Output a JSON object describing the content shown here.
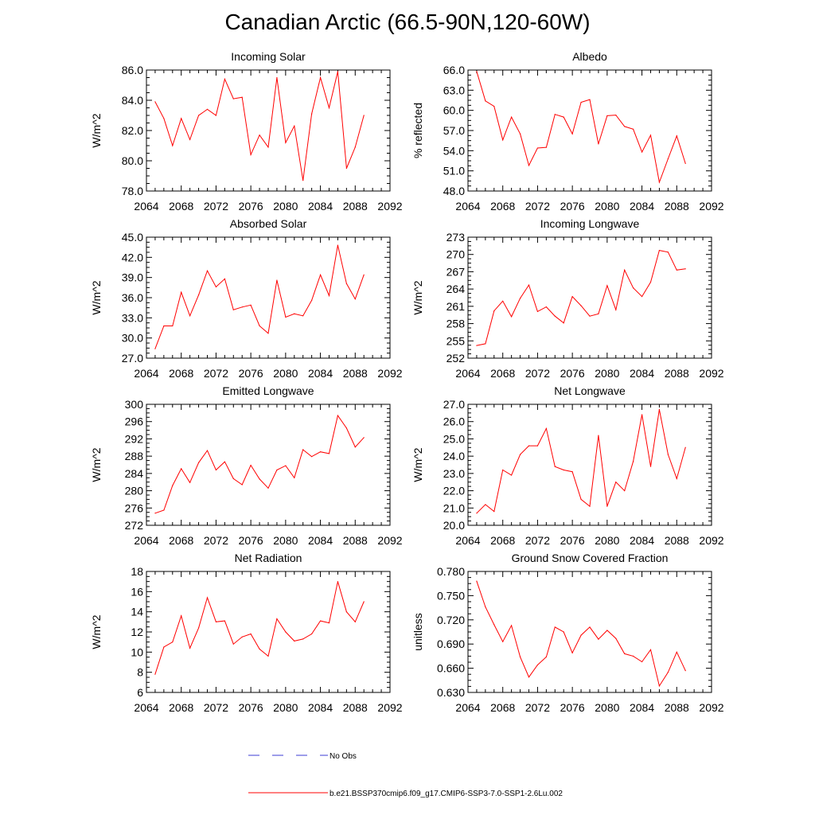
{
  "figure": {
    "title": "Canadian Arctic (66.5-90N,120-60W)",
    "legend": {
      "obs_label": "No Obs",
      "obs_color": "#3b3bd6",
      "model_label": "b.e21.BSSP370cmip6.f09_g17.CMIP6-SSP3-7.0-SSP1-2.6Lu.002",
      "model_color": "#ff0000"
    }
  },
  "chart_data": [
    {
      "type": "line",
      "title": "Incoming Solar",
      "ylabel": "W/m^2",
      "xlim": [
        2064,
        2092
      ],
      "xticks": [
        "2064",
        "2068",
        "2072",
        "2076",
        "2080",
        "2084",
        "2088",
        "2092"
      ],
      "ylim": [
        78.0,
        86.0
      ],
      "yticks": [
        "78.0",
        "80.0",
        "82.0",
        "84.0",
        "86.0"
      ],
      "x": [
        2065,
        2066,
        2067,
        2068,
        2069,
        2070,
        2071,
        2072,
        2073,
        2074,
        2075,
        2076,
        2077,
        2078,
        2079,
        2080,
        2081,
        2082,
        2083,
        2084,
        2085,
        2086,
        2087,
        2088,
        2089
      ],
      "series": [
        {
          "values": [
            83.9,
            82.8,
            81.0,
            82.8,
            81.4,
            83.0,
            83.4,
            83.0,
            85.4,
            84.1,
            84.2,
            80.4,
            81.7,
            80.9,
            85.5,
            81.2,
            82.3,
            78.7,
            83.1,
            85.5,
            83.5,
            85.9,
            79.5,
            80.9,
            83.0
          ]
        }
      ]
    },
    {
      "type": "line",
      "title": "Albedo",
      "ylabel": "% reflected",
      "xlim": [
        2064,
        2092
      ],
      "xticks": [
        "2064",
        "2068",
        "2072",
        "2076",
        "2080",
        "2084",
        "2088",
        "2092"
      ],
      "ylim": [
        48.0,
        66.0
      ],
      "yticks": [
        "48.0",
        "51.0",
        "54.0",
        "57.0",
        "60.0",
        "63.0",
        "66.0"
      ],
      "x": [
        2065,
        2066,
        2067,
        2068,
        2069,
        2070,
        2071,
        2072,
        2073,
        2074,
        2075,
        2076,
        2077,
        2078,
        2079,
        2080,
        2081,
        2082,
        2083,
        2084,
        2085,
        2086,
        2087,
        2088,
        2089
      ],
      "series": [
        {
          "values": [
            65.8,
            61.4,
            60.6,
            55.6,
            59.0,
            56.5,
            51.8,
            54.4,
            54.5,
            59.4,
            59.0,
            56.5,
            61.2,
            61.6,
            55.0,
            59.2,
            59.3,
            57.6,
            57.2,
            53.8,
            56.3,
            49.3,
            52.8,
            56.2,
            52.1
          ]
        }
      ]
    },
    {
      "type": "line",
      "title": "Absorbed Solar",
      "ylabel": "W/m^2",
      "xlim": [
        2064,
        2092
      ],
      "xticks": [
        "2064",
        "2068",
        "2072",
        "2076",
        "2080",
        "2084",
        "2088",
        "2092"
      ],
      "ylim": [
        27.0,
        45.0
      ],
      "yticks": [
        "27.0",
        "30.0",
        "33.0",
        "36.0",
        "39.0",
        "42.0",
        "45.0"
      ],
      "x": [
        2065,
        2066,
        2067,
        2068,
        2069,
        2070,
        2071,
        2072,
        2073,
        2074,
        2075,
        2076,
        2077,
        2078,
        2079,
        2080,
        2081,
        2082,
        2083,
        2084,
        2085,
        2086,
        2087,
        2088,
        2089
      ],
      "series": [
        {
          "values": [
            28.4,
            31.8,
            31.8,
            36.8,
            33.3,
            36.4,
            40.0,
            37.6,
            38.8,
            34.2,
            34.6,
            34.9,
            31.8,
            30.7,
            38.6,
            33.1,
            33.6,
            33.3,
            35.6,
            39.4,
            36.3,
            43.8,
            38.1,
            35.8,
            39.4
          ]
        }
      ]
    },
    {
      "type": "line",
      "title": "Incoming Longwave",
      "ylabel": "W/m^2",
      "xlim": [
        2064,
        2092
      ],
      "xticks": [
        "2064",
        "2068",
        "2072",
        "2076",
        "2080",
        "2084",
        "2088",
        "2092"
      ],
      "ylim": [
        252,
        273
      ],
      "yticks": [
        "252",
        "255",
        "258",
        "261",
        "264",
        "267",
        "270",
        "273"
      ],
      "x": [
        2065,
        2066,
        2067,
        2068,
        2069,
        2070,
        2071,
        2072,
        2073,
        2074,
        2075,
        2076,
        2077,
        2078,
        2079,
        2080,
        2081,
        2082,
        2083,
        2084,
        2085,
        2086,
        2087,
        2088,
        2089
      ],
      "series": [
        {
          "values": [
            254.2,
            254.5,
            260.2,
            261.9,
            259.2,
            262.4,
            264.7,
            260.1,
            260.9,
            259.3,
            258.1,
            262.7,
            261.1,
            259.3,
            259.7,
            264.6,
            260.4,
            267.3,
            264.2,
            262.7,
            265.2,
            270.7,
            270.4,
            267.3,
            267.5
          ]
        }
      ]
    },
    {
      "type": "line",
      "title": "Emitted Longwave",
      "ylabel": "W/m^2",
      "xlim": [
        2064,
        2092
      ],
      "xticks": [
        "2064",
        "2068",
        "2072",
        "2076",
        "2080",
        "2084",
        "2088",
        "2092"
      ],
      "ylim": [
        272,
        300
      ],
      "yticks": [
        "272",
        "276",
        "280",
        "284",
        "288",
        "292",
        "296",
        "300"
      ],
      "x": [
        2065,
        2066,
        2067,
        2068,
        2069,
        2070,
        2071,
        2072,
        2073,
        2074,
        2075,
        2076,
        2077,
        2078,
        2079,
        2080,
        2081,
        2082,
        2083,
        2084,
        2085,
        2086,
        2087,
        2088,
        2089
      ],
      "series": [
        {
          "values": [
            274.8,
            275.5,
            281.2,
            285.1,
            281.9,
            286.5,
            289.3,
            284.8,
            286.7,
            282.8,
            281.4,
            285.9,
            282.7,
            280.6,
            284.8,
            285.8,
            283.0,
            289.5,
            287.9,
            289.0,
            288.6,
            297.4,
            294.5,
            290.1,
            292.3
          ]
        }
      ]
    },
    {
      "type": "line",
      "title": "Net Longwave",
      "ylabel": "W/m^2",
      "xlim": [
        2064,
        2092
      ],
      "xticks": [
        "2064",
        "2068",
        "2072",
        "2076",
        "2080",
        "2084",
        "2088",
        "2092"
      ],
      "ylim": [
        20.0,
        27.0
      ],
      "yticks": [
        "20.0",
        "21.0",
        "22.0",
        "23.0",
        "24.0",
        "25.0",
        "26.0",
        "27.0"
      ],
      "x": [
        2065,
        2066,
        2067,
        2068,
        2069,
        2070,
        2071,
        2072,
        2073,
        2074,
        2075,
        2076,
        2077,
        2078,
        2079,
        2080,
        2081,
        2082,
        2083,
        2084,
        2085,
        2086,
        2087,
        2088,
        2089
      ],
      "series": [
        {
          "values": [
            20.7,
            21.2,
            20.8,
            23.2,
            22.9,
            24.1,
            24.6,
            24.6,
            25.6,
            23.4,
            23.2,
            23.1,
            21.5,
            21.1,
            25.2,
            21.1,
            22.5,
            22.0,
            23.7,
            26.4,
            23.4,
            26.7,
            24.1,
            22.7,
            24.5
          ]
        }
      ]
    },
    {
      "type": "line",
      "title": "Net Radiation",
      "ylabel": "W/m^2",
      "xlim": [
        2064,
        2092
      ],
      "xticks": [
        "2064",
        "2068",
        "2072",
        "2076",
        "2080",
        "2084",
        "2088",
        "2092"
      ],
      "ylim": [
        6,
        18
      ],
      "yticks": [
        "6",
        "8",
        "10",
        "12",
        "14",
        "16",
        "18"
      ],
      "x": [
        2065,
        2066,
        2067,
        2068,
        2069,
        2070,
        2071,
        2072,
        2073,
        2074,
        2075,
        2076,
        2077,
        2078,
        2079,
        2080,
        2081,
        2082,
        2083,
        2084,
        2085,
        2086,
        2087,
        2088,
        2089
      ],
      "series": [
        {
          "values": [
            7.8,
            10.5,
            11.0,
            13.6,
            10.4,
            12.4,
            15.4,
            13.0,
            13.1,
            10.8,
            11.5,
            11.8,
            10.3,
            9.6,
            13.3,
            12.0,
            11.1,
            11.3,
            11.8,
            13.1,
            12.9,
            17.0,
            14.0,
            13.0,
            15.0
          ]
        }
      ]
    },
    {
      "type": "line",
      "title": "Ground Snow Covered Fraction",
      "ylabel": "unitless",
      "xlim": [
        2064,
        2092
      ],
      "xticks": [
        "2064",
        "2068",
        "2072",
        "2076",
        "2080",
        "2084",
        "2088",
        "2092"
      ],
      "ylim": [
        0.63,
        0.78
      ],
      "yticks": [
        "0.630",
        "0.660",
        "0.690",
        "0.720",
        "0.750",
        "0.780"
      ],
      "x": [
        2065,
        2066,
        2067,
        2068,
        2069,
        2070,
        2071,
        2072,
        2073,
        2074,
        2075,
        2076,
        2077,
        2078,
        2079,
        2080,
        2081,
        2082,
        2083,
        2084,
        2085,
        2086,
        2087,
        2088,
        2089
      ],
      "series": [
        {
          "values": [
            0.768,
            0.736,
            0.714,
            0.693,
            0.713,
            0.674,
            0.649,
            0.664,
            0.674,
            0.711,
            0.705,
            0.679,
            0.701,
            0.711,
            0.696,
            0.707,
            0.697,
            0.678,
            0.675,
            0.668,
            0.683,
            0.638,
            0.655,
            0.68,
            0.657
          ]
        }
      ]
    }
  ]
}
